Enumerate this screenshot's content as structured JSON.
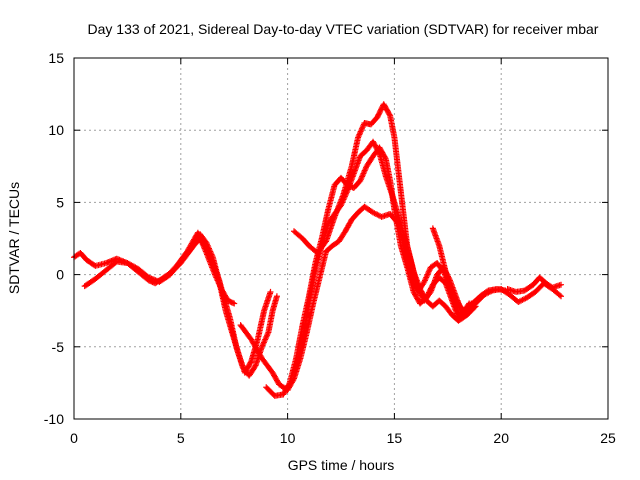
{
  "chart_data": {
    "type": "scatter",
    "title": "Day 133 of 2021, Sidereal Day-to-day VTEC variation (SDTVAR) for receiver mbar",
    "xlabel": "GPS time / hours",
    "ylabel": "SDTVAR / TECUs",
    "xlim": [
      0,
      25
    ],
    "ylim": [
      -10,
      15
    ],
    "x_ticks": [
      "0",
      "5",
      "10",
      "15",
      "20",
      "25"
    ],
    "y_ticks": [
      "-10",
      "-5",
      "0",
      "5",
      "10",
      "15"
    ],
    "grid": true,
    "marker": "+",
    "colors": {
      "series": "#ff0000",
      "grid": "#a0a0a0",
      "axis": "#000000"
    },
    "series": [
      {
        "points": [
          [
            0.0,
            1.2
          ],
          [
            0.3,
            1.5
          ],
          [
            0.6,
            1.0
          ],
          [
            1.0,
            0.6
          ],
          [
            1.5,
            0.8
          ],
          [
            2.0,
            1.1
          ],
          [
            2.5,
            0.8
          ],
          [
            3.0,
            0.2
          ],
          [
            3.5,
            -0.4
          ],
          [
            3.8,
            -0.6
          ],
          [
            4.2,
            -0.2
          ],
          [
            4.6,
            0.2
          ],
          [
            5.0,
            0.8
          ],
          [
            5.3,
            1.4
          ],
          [
            5.6,
            2.0
          ],
          [
            5.9,
            2.5
          ],
          [
            6.2,
            1.8
          ],
          [
            6.5,
            0.8
          ],
          [
            6.8,
            -0.4
          ],
          [
            7.0,
            -1.5
          ],
          [
            7.3,
            -3.0
          ],
          [
            7.6,
            -5.0
          ],
          [
            7.9,
            -6.4
          ],
          [
            8.2,
            -7.0
          ],
          [
            8.5,
            -6.3
          ],
          [
            8.8,
            -5.0
          ],
          [
            9.1,
            -4.0
          ],
          [
            9.3,
            -2.5
          ],
          [
            9.5,
            -1.5
          ]
        ]
      },
      {
        "points": [
          [
            0.5,
            -0.8
          ],
          [
            1.0,
            -0.3
          ],
          [
            1.5,
            0.3
          ],
          [
            2.0,
            0.9
          ],
          [
            2.5,
            0.8
          ],
          [
            3.0,
            0.4
          ],
          [
            3.5,
            -0.2
          ],
          [
            4.0,
            -0.5
          ],
          [
            4.5,
            0.0
          ],
          [
            5.0,
            0.9
          ],
          [
            5.5,
            1.8
          ],
          [
            5.9,
            2.8
          ],
          [
            6.2,
            2.2
          ],
          [
            6.5,
            1.2
          ],
          [
            6.8,
            -0.5
          ],
          [
            7.1,
            -2.5
          ],
          [
            7.4,
            -4.0
          ],
          [
            7.7,
            -5.5
          ],
          [
            8.0,
            -6.8
          ],
          [
            8.3,
            -6.0
          ],
          [
            8.6,
            -4.5
          ],
          [
            8.9,
            -2.5
          ],
          [
            9.2,
            -1.2
          ]
        ]
      },
      {
        "points": [
          [
            4.3,
            -0.2
          ],
          [
            4.8,
            0.6
          ],
          [
            5.3,
            1.6
          ],
          [
            5.8,
            2.9
          ],
          [
            6.2,
            1.5
          ],
          [
            6.6,
            0.0
          ],
          [
            6.9,
            -1.0
          ],
          [
            7.2,
            -1.8
          ],
          [
            7.5,
            -2.0
          ]
        ]
      },
      {
        "points": [
          [
            7.8,
            -3.5
          ],
          [
            8.3,
            -4.5
          ],
          [
            8.8,
            -5.8
          ],
          [
            9.3,
            -6.8
          ],
          [
            9.6,
            -7.6
          ],
          [
            10.0,
            -8.0
          ],
          [
            10.3,
            -7.2
          ],
          [
            10.6,
            -5.8
          ],
          [
            10.9,
            -4.0
          ],
          [
            11.2,
            -2.0
          ],
          [
            11.5,
            -0.2
          ],
          [
            11.8,
            1.6
          ],
          [
            12.1,
            2.0
          ],
          [
            12.4,
            2.3
          ],
          [
            12.7,
            3.0
          ],
          [
            13.0,
            3.8
          ],
          [
            13.3,
            4.3
          ],
          [
            13.6,
            4.7
          ],
          [
            14.0,
            4.3
          ],
          [
            14.4,
            4.0
          ],
          [
            14.8,
            4.2
          ],
          [
            15.2,
            3.5
          ],
          [
            15.5,
            1.5
          ],
          [
            15.8,
            -0.3
          ],
          [
            16.1,
            -1.2
          ],
          [
            16.4,
            -0.5
          ],
          [
            16.7,
            0.5
          ],
          [
            17.0,
            0.8
          ],
          [
            17.3,
            0.2
          ],
          [
            17.6,
            -0.8
          ],
          [
            17.9,
            -1.8
          ],
          [
            18.2,
            -2.5
          ],
          [
            18.5,
            -2.2
          ],
          [
            18.8,
            -1.8
          ],
          [
            19.1,
            -1.4
          ],
          [
            19.4,
            -1.1
          ],
          [
            19.8,
            -1.0
          ],
          [
            20.2,
            -1.1
          ]
        ]
      },
      {
        "points": [
          [
            9.0,
            -7.8
          ],
          [
            9.4,
            -8.4
          ],
          [
            9.8,
            -8.3
          ],
          [
            10.1,
            -7.5
          ],
          [
            10.4,
            -5.8
          ],
          [
            10.7,
            -3.5
          ],
          [
            11.0,
            -1.5
          ],
          [
            11.3,
            0.8
          ],
          [
            11.6,
            2.5
          ],
          [
            11.9,
            4.5
          ],
          [
            12.2,
            6.2
          ],
          [
            12.5,
            6.7
          ],
          [
            12.8,
            6.2
          ],
          [
            13.1,
            6.0
          ],
          [
            13.4,
            6.5
          ],
          [
            13.7,
            7.5
          ],
          [
            14.0,
            8.2
          ],
          [
            14.3,
            8.8
          ],
          [
            14.6,
            8.0
          ],
          [
            14.8,
            6.5
          ],
          [
            15.0,
            4.5
          ],
          [
            15.3,
            2.0
          ],
          [
            15.6,
            0.5
          ],
          [
            15.9,
            -1.2
          ],
          [
            16.2,
            -2.0
          ],
          [
            16.5,
            -1.6
          ],
          [
            16.8,
            -0.7
          ],
          [
            17.1,
            -0.2
          ],
          [
            17.4,
            -0.6
          ],
          [
            17.7,
            -1.8
          ],
          [
            18.0,
            -3.0
          ],
          [
            18.3,
            -2.6
          ],
          [
            18.6,
            -2.0
          ]
        ]
      },
      {
        "points": [
          [
            10.4,
            -6.5
          ],
          [
            10.7,
            -4.5
          ],
          [
            11.0,
            -2.0
          ],
          [
            11.3,
            0.3
          ],
          [
            11.6,
            2.0
          ],
          [
            11.9,
            3.5
          ],
          [
            12.2,
            4.2
          ],
          [
            12.5,
            4.8
          ],
          [
            12.8,
            5.8
          ],
          [
            13.1,
            7.0
          ],
          [
            13.4,
            8.2
          ],
          [
            13.7,
            8.6
          ],
          [
            14.0,
            9.2
          ],
          [
            14.3,
            8.4
          ],
          [
            14.6,
            6.8
          ],
          [
            14.9,
            5.5
          ],
          [
            15.2,
            4.0
          ],
          [
            15.5,
            2.5
          ],
          [
            15.8,
            0.8
          ],
          [
            16.1,
            -1.0
          ],
          [
            16.4,
            -1.8
          ],
          [
            16.7,
            -1.2
          ],
          [
            17.0,
            0.0
          ],
          [
            17.3,
            0.5
          ],
          [
            17.6,
            -0.4
          ],
          [
            17.9,
            -1.6
          ],
          [
            18.2,
            -2.7
          ],
          [
            18.5,
            -2.0
          ]
        ]
      },
      {
        "points": [
          [
            10.3,
            3.0
          ],
          [
            10.7,
            2.5
          ],
          [
            11.0,
            2.0
          ],
          [
            11.4,
            1.5
          ],
          [
            11.8,
            2.3
          ],
          [
            12.2,
            4.0
          ],
          [
            12.6,
            5.5
          ],
          [
            13.0,
            7.5
          ],
          [
            13.3,
            9.5
          ],
          [
            13.6,
            10.5
          ],
          [
            13.9,
            10.4
          ],
          [
            14.2,
            10.9
          ],
          [
            14.5,
            11.8
          ],
          [
            14.8,
            11.0
          ],
          [
            15.0,
            9.5
          ],
          [
            15.2,
            7.0
          ],
          [
            15.4,
            4.5
          ],
          [
            15.6,
            2.0
          ],
          [
            15.9,
            0.2
          ],
          [
            16.2,
            -1.0
          ],
          [
            16.5,
            -1.8
          ],
          [
            16.8,
            -2.2
          ],
          [
            17.1,
            -1.8
          ],
          [
            17.4,
            -2.2
          ],
          [
            17.7,
            -2.8
          ],
          [
            18.0,
            -3.2
          ],
          [
            18.4,
            -2.8
          ],
          [
            18.8,
            -2.2
          ]
        ]
      },
      {
        "points": [
          [
            16.8,
            3.2
          ],
          [
            17.1,
            2.0
          ],
          [
            17.4,
            0.2
          ],
          [
            17.7,
            -1.5
          ],
          [
            18.0,
            -2.7
          ],
          [
            18.4,
            -2.6
          ],
          [
            18.8,
            -2.0
          ],
          [
            19.2,
            -1.4
          ],
          [
            19.6,
            -1.1
          ],
          [
            20.0,
            -1.0
          ],
          [
            20.4,
            -1.4
          ],
          [
            20.8,
            -1.9
          ],
          [
            21.2,
            -1.6
          ],
          [
            21.6,
            -1.2
          ],
          [
            22.0,
            -0.6
          ],
          [
            22.4,
            -1.0
          ],
          [
            22.8,
            -1.5
          ]
        ]
      },
      {
        "points": [
          [
            20.3,
            -1.0
          ],
          [
            20.7,
            -1.2
          ],
          [
            21.1,
            -1.1
          ],
          [
            21.5,
            -0.7
          ],
          [
            21.8,
            -0.2
          ],
          [
            22.1,
            -0.6
          ],
          [
            22.4,
            -0.9
          ],
          [
            22.8,
            -0.7
          ]
        ]
      }
    ]
  }
}
